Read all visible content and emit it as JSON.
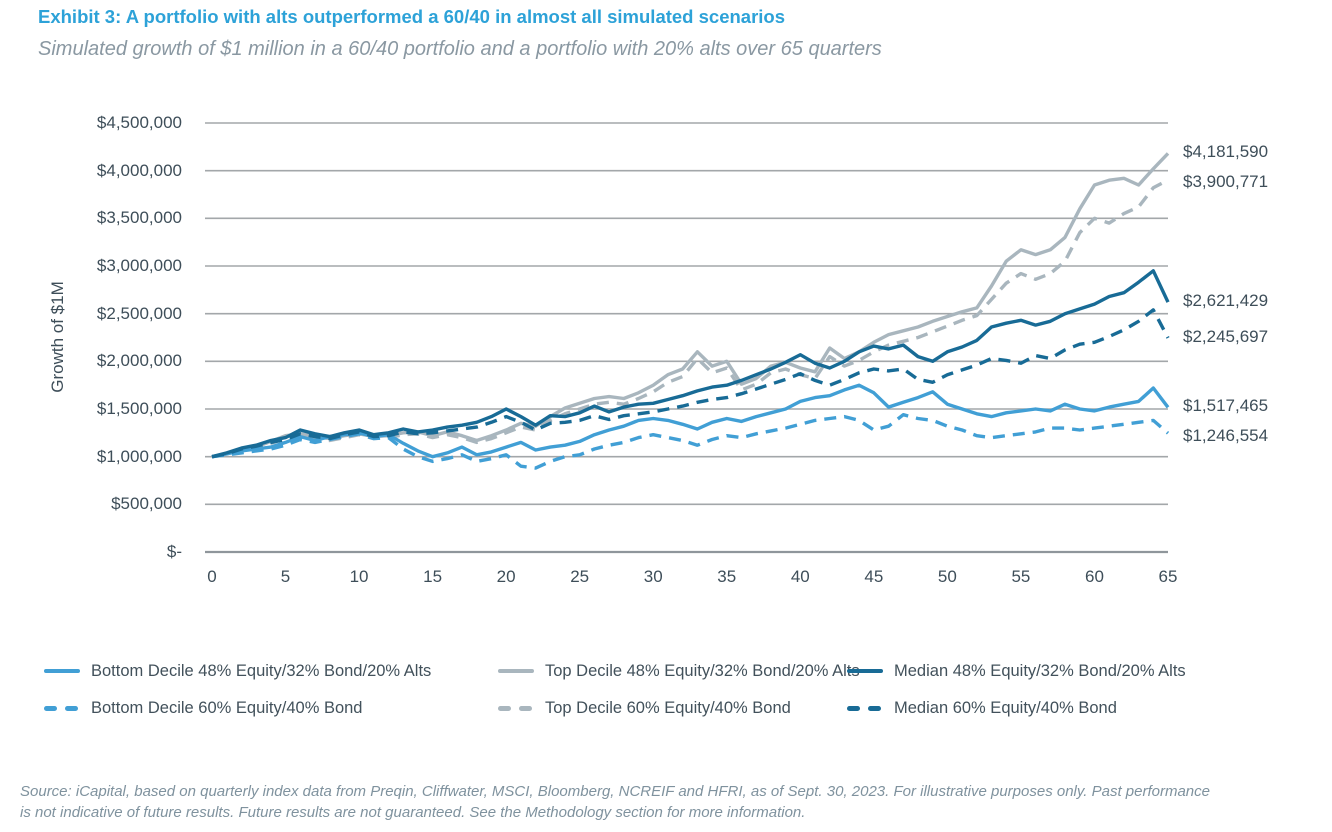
{
  "header": {
    "title": "Exhibit 3: A portfolio with alts outperformed a 60/40 in almost all simulated scenarios",
    "subtitle": "Simulated growth of $1 million in a 60/40 portfolio and a portfolio with 20% alts over 65 quarters"
  },
  "chart_data": {
    "type": "line",
    "title": "Exhibit 3: A portfolio with alts outperformed a 60/40 in almost all simulated scenarios",
    "subtitle": "Simulated growth of $1 million in a 60/40 portfolio and a portfolio with 20% alts over 65 quarters",
    "xlabel": "",
    "ylabel": "Growth of $1M",
    "x_unit": "quarters",
    "x_range": [
      0,
      65
    ],
    "ylim": [
      0,
      4500000
    ],
    "grid": "horizontal",
    "legend_position": "bottom",
    "x_axis": {
      "tick_values": [
        0,
        5,
        10,
        15,
        20,
        25,
        30,
        35,
        40,
        45,
        50,
        55,
        60,
        65
      ]
    },
    "y_axis": {
      "tick_labels": [
        "$-",
        "$500,000",
        "$1,000,000",
        "$1,500,000",
        "$2,000,000",
        "$2,500,000",
        "$3,000,000",
        "$3,500,000",
        "$4,000,000",
        "$4,500,000"
      ],
      "tick_values_millions": [
        0,
        0.5,
        1.0,
        1.5,
        2.0,
        2.5,
        3.0,
        3.5,
        4.0,
        4.5
      ]
    },
    "series": [
      {
        "name": "Bottom Decile 48% Equity/32% Bond/20% Alts",
        "style": "solid",
        "color": "#419FD5",
        "end_value": 1517465,
        "end_label": "$1,517,465",
        "values_millions": [
          1.0,
          1.03,
          1.06,
          1.08,
          1.1,
          1.15,
          1.21,
          1.17,
          1.21,
          1.23,
          1.25,
          1.21,
          1.23,
          1.14,
          1.06,
          1.0,
          1.04,
          1.1,
          1.02,
          1.05,
          1.1,
          1.15,
          1.07,
          1.1,
          1.12,
          1.16,
          1.23,
          1.28,
          1.32,
          1.38,
          1.4,
          1.38,
          1.34,
          1.29,
          1.36,
          1.4,
          1.37,
          1.42,
          1.46,
          1.5,
          1.58,
          1.62,
          1.64,
          1.7,
          1.75,
          1.67,
          1.52,
          1.57,
          1.62,
          1.68,
          1.55,
          1.5,
          1.45,
          1.42,
          1.46,
          1.48,
          1.5,
          1.48,
          1.55,
          1.5,
          1.48,
          1.52,
          1.55,
          1.58,
          1.72,
          1.517465
        ]
      },
      {
        "name": "Top Decile 48% Equity/32% Bond/20% Alts",
        "style": "solid",
        "color": "#A9B6BE",
        "end_value": 4181590,
        "end_label": "$4,181,590",
        "values_millions": [
          1.0,
          1.03,
          1.07,
          1.1,
          1.16,
          1.22,
          1.24,
          1.21,
          1.19,
          1.22,
          1.24,
          1.21,
          1.22,
          1.25,
          1.26,
          1.22,
          1.26,
          1.22,
          1.17,
          1.22,
          1.28,
          1.35,
          1.32,
          1.42,
          1.51,
          1.56,
          1.61,
          1.63,
          1.61,
          1.67,
          1.75,
          1.86,
          1.92,
          2.1,
          1.95,
          2.0,
          1.76,
          1.82,
          1.95,
          1.99,
          1.93,
          1.89,
          2.14,
          2.03,
          2.1,
          2.2,
          2.28,
          2.32,
          2.36,
          2.42,
          2.47,
          2.52,
          2.56,
          2.79,
          3.05,
          3.17,
          3.12,
          3.17,
          3.3,
          3.6,
          3.85,
          3.9,
          3.92,
          3.85,
          4.02,
          4.18159
        ]
      },
      {
        "name": "Median 48% Equity/32% Bond/20% Alts",
        "style": "solid",
        "color": "#186B96",
        "end_value": 2621429,
        "end_label": "$2,621,429",
        "values_millions": [
          1.0,
          1.04,
          1.09,
          1.12,
          1.17,
          1.2,
          1.28,
          1.24,
          1.21,
          1.25,
          1.28,
          1.23,
          1.25,
          1.29,
          1.26,
          1.28,
          1.31,
          1.33,
          1.36,
          1.42,
          1.5,
          1.42,
          1.33,
          1.43,
          1.42,
          1.46,
          1.53,
          1.47,
          1.52,
          1.55,
          1.56,
          1.6,
          1.64,
          1.69,
          1.73,
          1.75,
          1.8,
          1.86,
          1.92,
          1.99,
          2.07,
          1.98,
          1.93,
          2.0,
          2.1,
          2.16,
          2.13,
          2.17,
          2.05,
          2.0,
          2.1,
          2.15,
          2.22,
          2.36,
          2.4,
          2.43,
          2.38,
          2.42,
          2.5,
          2.55,
          2.6,
          2.68,
          2.72,
          2.83,
          2.95,
          2.621429
        ]
      },
      {
        "name": "Bottom Decile 60% Equity/40% Bond",
        "style": "dashed",
        "color": "#419FD5",
        "end_value": 1246554,
        "end_label": "$1,246,554",
        "values_millions": [
          1.0,
          1.02,
          1.04,
          1.06,
          1.08,
          1.12,
          1.18,
          1.15,
          1.18,
          1.21,
          1.24,
          1.19,
          1.2,
          1.08,
          1.0,
          0.95,
          0.98,
          1.02,
          0.95,
          0.98,
          1.02,
          0.9,
          0.88,
          0.95,
          1.0,
          1.02,
          1.08,
          1.12,
          1.15,
          1.2,
          1.23,
          1.2,
          1.17,
          1.12,
          1.18,
          1.22,
          1.2,
          1.24,
          1.27,
          1.3,
          1.34,
          1.38,
          1.4,
          1.42,
          1.38,
          1.28,
          1.32,
          1.44,
          1.4,
          1.38,
          1.32,
          1.28,
          1.22,
          1.2,
          1.22,
          1.24,
          1.26,
          1.3,
          1.3,
          1.28,
          1.3,
          1.32,
          1.34,
          1.36,
          1.38,
          1.246554
        ]
      },
      {
        "name": "Top Decile 60% Equity/40% Bond",
        "style": "dashed",
        "color": "#A9B6BE",
        "end_value": 3900771,
        "end_label": "$3,900,771",
        "values_millions": [
          1.0,
          1.02,
          1.06,
          1.09,
          1.14,
          1.19,
          1.22,
          1.19,
          1.17,
          1.2,
          1.23,
          1.19,
          1.2,
          1.23,
          1.24,
          1.2,
          1.23,
          1.2,
          1.15,
          1.19,
          1.25,
          1.31,
          1.28,
          1.38,
          1.45,
          1.5,
          1.55,
          1.57,
          1.55,
          1.61,
          1.68,
          1.78,
          1.84,
          2.03,
          1.88,
          1.93,
          1.7,
          1.76,
          1.88,
          1.92,
          1.86,
          1.82,
          2.05,
          1.95,
          2.01,
          2.1,
          2.17,
          2.21,
          2.25,
          2.31,
          2.37,
          2.43,
          2.48,
          2.65,
          2.82,
          2.92,
          2.86,
          2.92,
          3.05,
          3.35,
          3.5,
          3.45,
          3.55,
          3.62,
          3.82,
          3.900771
        ]
      },
      {
        "name": "Median 60% Equity/40% Bond",
        "style": "dashed",
        "color": "#186B96",
        "end_value": 2245697,
        "end_label": "$2,245,697",
        "values_millions": [
          1.0,
          1.03,
          1.08,
          1.11,
          1.15,
          1.18,
          1.24,
          1.21,
          1.19,
          1.23,
          1.26,
          1.21,
          1.22,
          1.26,
          1.24,
          1.25,
          1.27,
          1.29,
          1.31,
          1.36,
          1.42,
          1.36,
          1.28,
          1.35,
          1.36,
          1.38,
          1.43,
          1.39,
          1.43,
          1.45,
          1.47,
          1.5,
          1.53,
          1.57,
          1.6,
          1.62,
          1.66,
          1.71,
          1.76,
          1.81,
          1.87,
          1.8,
          1.75,
          1.81,
          1.88,
          1.92,
          1.9,
          1.92,
          1.81,
          1.78,
          1.86,
          1.91,
          1.96,
          2.03,
          2.01,
          1.98,
          2.06,
          2.03,
          2.12,
          2.18,
          2.2,
          2.26,
          2.33,
          2.42,
          2.54,
          2.245697
        ]
      }
    ],
    "colors": {
      "title_blue": "#2DA2D8",
      "light_blue_line": "#419FD5",
      "gray_line": "#A9B6BE",
      "dark_blue_line": "#186B96",
      "axis_text": "#3E4E59",
      "gridline": "#A3A7AA",
      "subtitle_gray": "#8A98A2",
      "footer_gray": "#7F929E"
    }
  },
  "footer": {
    "line1": "Source: iCapital, based on quarterly index data from Preqin, Cliffwater, MSCI, Bloomberg, NCREIF and HFRI, as of Sept. 30, 2023. For illustrative purposes only. Past performance",
    "line2": "is not indicative of future results. Future results are not guaranteed. See the Methodology section for more information."
  }
}
